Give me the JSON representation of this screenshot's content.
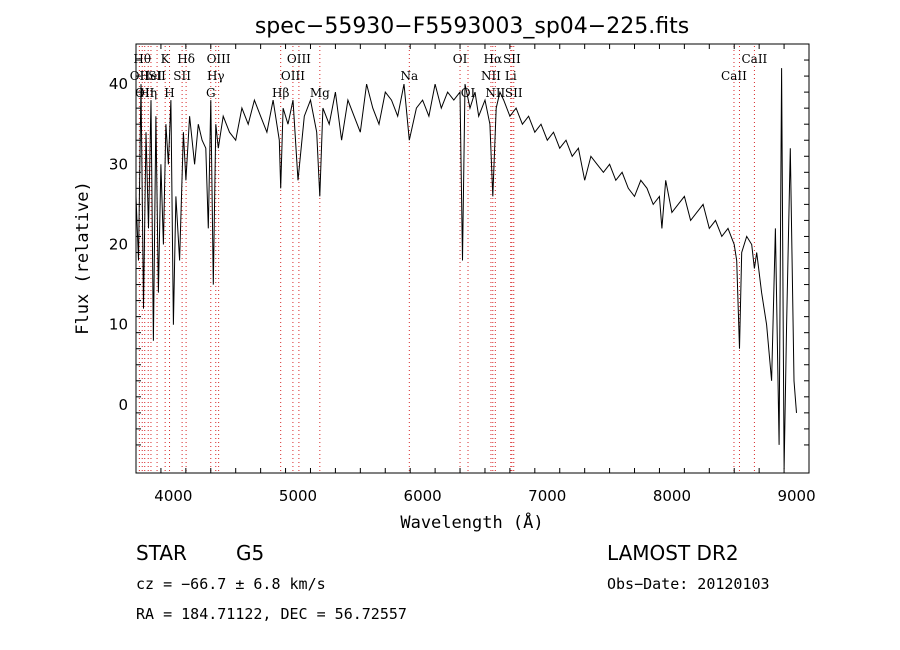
{
  "chart_data": {
    "type": "line",
    "title": "spec−55930−F5593003_sp04−225.fits",
    "xlabel": "Wavelength (Å)",
    "ylabel": "Flux (relative)",
    "xlim": [
      3700,
      9100
    ],
    "ylim": [
      -8.5,
      45
    ],
    "xticks": [
      4000,
      5000,
      6000,
      7000,
      8000,
      9000
    ],
    "yticks": [
      0,
      10,
      20,
      30,
      40
    ],
    "grid": false,
    "line_color": "#000000",
    "marker_color": "#d62728",
    "series": [
      {
        "x": [
          3700,
          3720,
          3740,
          3760,
          3780,
          3800,
          3820,
          3840,
          3860,
          3880,
          3900,
          3920,
          3940,
          3960,
          3980,
          4000,
          4020,
          4050,
          4080,
          4100,
          4130,
          4170,
          4200,
          4230,
          4260,
          4280,
          4300,
          4320,
          4340,
          4360,
          4400,
          4450,
          4500,
          4550,
          4600,
          4650,
          4700,
          4750,
          4800,
          4850,
          4861,
          4880,
          4920,
          4960,
          5000,
          5050,
          5100,
          5150,
          5175,
          5200,
          5250,
          5300,
          5350,
          5400,
          5450,
          5500,
          5550,
          5600,
          5650,
          5700,
          5750,
          5800,
          5850,
          5893,
          5950,
          6000,
          6050,
          6100,
          6150,
          6200,
          6250,
          6300,
          6320,
          6340,
          6380,
          6420,
          6450,
          6500,
          6540,
          6563,
          6590,
          6620,
          6650,
          6700,
          6750,
          6800,
          6850,
          6900,
          6950,
          7000,
          7050,
          7100,
          7150,
          7200,
          7250,
          7300,
          7350,
          7400,
          7450,
          7500,
          7550,
          7600,
          7650,
          7700,
          7750,
          7800,
          7850,
          7900,
          7920,
          7950,
          8000,
          8050,
          8100,
          8150,
          8200,
          8250,
          8300,
          8350,
          8400,
          8450,
          8500,
          8520,
          8542,
          8560,
          8600,
          8640,
          8662,
          8680,
          8720,
          8760,
          8800,
          8830,
          8860,
          8880,
          8900,
          8920,
          8950,
          8980,
          9000
        ],
        "y": [
          26,
          18,
          40,
          12,
          34,
          22,
          38,
          8,
          36,
          14,
          30,
          20,
          35,
          30,
          38,
          10,
          26,
          18,
          34,
          28,
          36,
          30,
          35,
          33,
          32,
          22,
          38,
          15,
          35,
          32,
          36,
          34,
          33,
          37,
          35,
          38,
          36,
          34,
          38,
          33,
          27,
          37,
          35,
          38,
          28,
          36,
          38,
          34,
          26,
          37,
          35,
          39,
          33,
          38,
          36,
          34,
          40,
          37,
          35,
          39,
          38,
          36,
          40,
          33,
          37,
          38,
          36,
          40,
          37,
          39,
          38,
          39,
          18,
          40,
          37,
          39,
          36,
          38,
          35,
          26,
          37,
          39,
          38,
          36,
          37,
          35,
          36,
          34,
          35,
          33,
          34,
          32,
          33,
          31,
          32,
          28,
          31,
          30,
          29,
          30,
          28,
          29,
          27,
          26,
          28,
          27,
          25,
          26,
          22,
          28,
          24,
          25,
          26,
          23,
          24,
          25,
          22,
          23,
          21,
          22,
          20,
          18,
          7,
          19,
          21,
          20,
          17,
          19,
          14,
          10,
          3,
          22,
          -5,
          42,
          -8,
          10,
          32,
          3,
          -1
        ]
      }
    ],
    "lines_marked": [
      {
        "wl": 3727,
        "label": "OII",
        "row": 2
      },
      {
        "wl": 3750,
        "label": "Hθ",
        "row": 1
      },
      {
        "wl": 3770,
        "label": "OII",
        "row": 3
      },
      {
        "wl": 3798,
        "label": "Hη",
        "row": 3
      },
      {
        "wl": 3820,
        "label": "HeI",
        "row": 2
      },
      {
        "wl": 3869,
        "label": "SII",
        "row": 2
      },
      {
        "wl": 3934,
        "label": "K",
        "row": 1
      },
      {
        "wl": 3969,
        "label": "H",
        "row": 3
      },
      {
        "wl": 4070,
        "label": "SII",
        "row": 2
      },
      {
        "wl": 4102,
        "label": "Hδ",
        "row": 1
      },
      {
        "wl": 4300,
        "label": "G",
        "row": 3
      },
      {
        "wl": 4340,
        "label": "Hγ",
        "row": 2
      },
      {
        "wl": 4363,
        "label": "OIII",
        "row": 1
      },
      {
        "wl": 4861,
        "label": "Hβ",
        "row": 3
      },
      {
        "wl": 4959,
        "label": "OIII",
        "row": 2
      },
      {
        "wl": 5007,
        "label": "OIII",
        "row": 1
      },
      {
        "wl": 5175,
        "label": "Mg",
        "row": 3
      },
      {
        "wl": 5893,
        "label": "Na",
        "row": 2
      },
      {
        "wl": 6300,
        "label": "OI",
        "row": 1
      },
      {
        "wl": 6364,
        "label": "OI",
        "row": 3
      },
      {
        "wl": 6548,
        "label": "NII",
        "row": 2
      },
      {
        "wl": 6563,
        "label": "Hα",
        "row": 1
      },
      {
        "wl": 6583,
        "label": "NII",
        "row": 3
      },
      {
        "wl": 6707,
        "label": "Li",
        "row": 2
      },
      {
        "wl": 6716,
        "label": "SII",
        "row": 1
      },
      {
        "wl": 6731,
        "label": "SII",
        "row": 3
      },
      {
        "wl": 8498,
        "label": "CaII",
        "row": 2
      },
      {
        "wl": 8542,
        "label": "",
        "row": 0
      },
      {
        "wl": 8662,
        "label": "CaII",
        "row": 1
      }
    ]
  },
  "info": {
    "object_class": "STAR",
    "subclass": "G5",
    "survey": "LAMOST DR2",
    "velocity": "cz = −66.7 ± 6.8 km/s",
    "obs_date": "Obs−Date: 20120103",
    "coordinates": "RA = 184.71122, DEC =  56.72557"
  }
}
